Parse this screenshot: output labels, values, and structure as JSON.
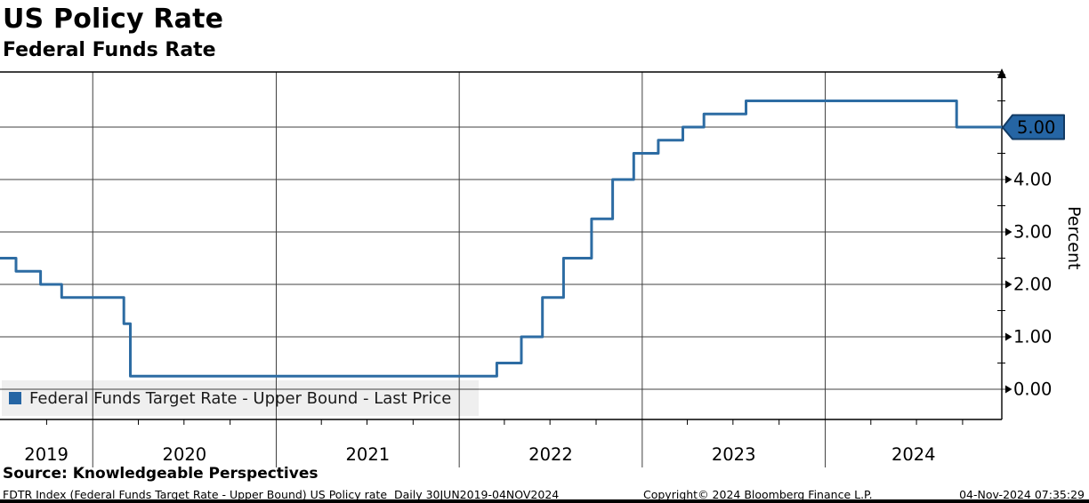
{
  "header": {
    "title": "US Policy Rate",
    "subtitle": "Federal Funds Rate"
  },
  "legend": {
    "label": "Federal Funds Target Rate - Upper Bound - Last Price",
    "marker_color": "#2565a4"
  },
  "y_axis": {
    "label": "Percent",
    "tick_labels": [
      "0.00",
      "1.00",
      "2.00",
      "3.00",
      "4.00"
    ],
    "tick_values": [
      0,
      1,
      2,
      3,
      4
    ],
    "minor_tick_values": [
      0.5,
      1.5,
      2.5,
      3.5,
      4.5,
      5.5,
      6.0
    ]
  },
  "x_axis": {
    "year_labels": [
      "2019",
      "2020",
      "2021",
      "2022",
      "2023",
      "2024"
    ],
    "year_boundaries": [
      "2020-01-01",
      "2021-01-01",
      "2022-01-01",
      "2023-01-01",
      "2024-01-01"
    ],
    "quarter_tick_months": [
      "04",
      "07",
      "10"
    ]
  },
  "last_price": {
    "label": "5.00",
    "value": 5.0,
    "flag_fill": "#2565a4",
    "flag_border": "#123a63",
    "text_color": "#ffffff"
  },
  "footer": {
    "source": "Source: Knowledgeable Perspectives",
    "description": "FDTR Index (Federal Funds Target Rate - Upper Bound) US Policy rate  Daily 30JUN2019-04NOV2024",
    "copyright": "Copyright© 2024 Bloomberg Finance L.P.",
    "timestamp": "04-Nov-2024 07:35:29"
  },
  "colors": {
    "background": "#ffffff",
    "grid": "#404040",
    "axis": "#000000",
    "line": "#2d6ca3",
    "legend_bg": "#efefef",
    "bottom_bar": "#000000"
  },
  "chart_data": {
    "type": "line",
    "line_style": "step-after",
    "title": "US Policy Rate",
    "subtitle": "Federal Funds Rate",
    "xlabel": "",
    "ylabel": "Percent",
    "ylim": [
      0,
      6
    ],
    "x_range": [
      "2019-06-30",
      "2024-11-04"
    ],
    "grid": true,
    "legend_position": "bottom-left",
    "last_price_label": "5.00",
    "series": [
      {
        "name": "Federal Funds Target Rate - Upper Bound - Last Price",
        "color": "#2d6ca3",
        "points": [
          {
            "date": "2019-06-30",
            "value": 2.5
          },
          {
            "date": "2019-08-01",
            "value": 2.25
          },
          {
            "date": "2019-09-19",
            "value": 2.0
          },
          {
            "date": "2019-10-31",
            "value": 1.75
          },
          {
            "date": "2020-03-03",
            "value": 1.25
          },
          {
            "date": "2020-03-16",
            "value": 0.25
          },
          {
            "date": "2022-03-17",
            "value": 0.5
          },
          {
            "date": "2022-05-05",
            "value": 1.0
          },
          {
            "date": "2022-06-16",
            "value": 1.75
          },
          {
            "date": "2022-07-28",
            "value": 2.5
          },
          {
            "date": "2022-09-22",
            "value": 3.25
          },
          {
            "date": "2022-11-03",
            "value": 4.0
          },
          {
            "date": "2022-12-15",
            "value": 4.5
          },
          {
            "date": "2023-02-02",
            "value": 4.75
          },
          {
            "date": "2023-03-23",
            "value": 5.0
          },
          {
            "date": "2023-05-04",
            "value": 5.25
          },
          {
            "date": "2023-07-27",
            "value": 5.5
          },
          {
            "date": "2024-09-19",
            "value": 5.0
          },
          {
            "date": "2024-11-04",
            "value": 5.0
          }
        ]
      }
    ]
  }
}
